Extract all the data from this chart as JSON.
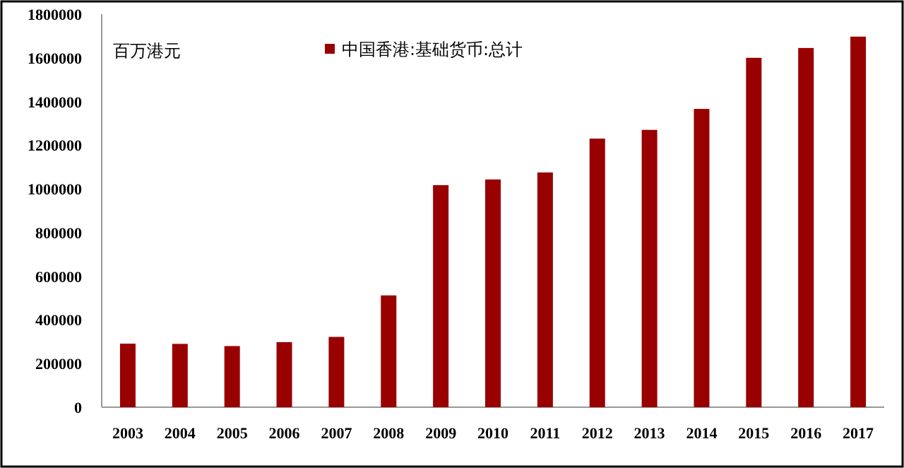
{
  "chart_data": {
    "type": "bar",
    "ylabel": "百万港元",
    "categories": [
      "2003",
      "2004",
      "2005",
      "2006",
      "2007",
      "2008",
      "2009",
      "2010",
      "2011",
      "2012",
      "2013",
      "2014",
      "2015",
      "2016",
      "2017"
    ],
    "series": [
      {
        "name": "中国香港:基础货币:总计",
        "color": "#990000",
        "values": [
          291000,
          290000,
          280000,
          298000,
          322000,
          512000,
          1017000,
          1043000,
          1075000,
          1230000,
          1270000,
          1366000,
          1600000,
          1645000,
          1697000
        ]
      }
    ],
    "ylim": [
      0,
      1800000
    ],
    "yticks": [
      0,
      200000,
      400000,
      600000,
      800000,
      1000000,
      1200000,
      1400000,
      1600000,
      1800000
    ],
    "legend": "top",
    "grid": false
  }
}
